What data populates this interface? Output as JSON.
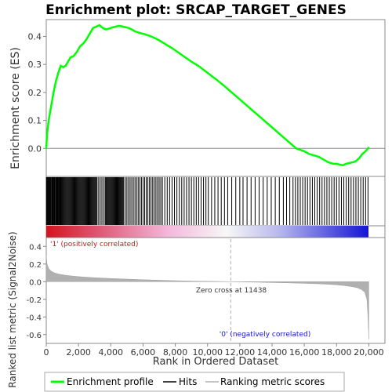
{
  "chart_data": [
    {
      "type": "line",
      "title": "Enrichment plot: SRCAP_TARGET_GENES",
      "ylabel": "Enrichment score (ES)",
      "ylim": [
        -0.1,
        0.46
      ],
      "yticks": [
        0.0,
        0.1,
        0.2,
        0.3,
        0.4
      ],
      "ytick_labels": [
        "0.0",
        "0.1",
        "0.2",
        "0.3",
        "0.4"
      ],
      "xlim": [
        0,
        21000
      ],
      "grid": false,
      "series": [
        {
          "name": "Enrichment profile",
          "color": "#00ff00",
          "x": [
            0,
            50,
            150,
            300,
            450,
            600,
            750,
            900,
            1050,
            1200,
            1350,
            1500,
            1700,
            1900,
            2100,
            2300,
            2500,
            2700,
            2900,
            3100,
            3300,
            3500,
            3700,
            3900,
            4100,
            4300,
            4500,
            4700,
            4900,
            5100,
            5300,
            5500,
            5800,
            6100,
            6400,
            6700,
            7000,
            7400,
            7800,
            8200,
            8600,
            9000,
            9500,
            10000,
            10500,
            11000,
            11500,
            12000,
            12500,
            13000,
            13500,
            14000,
            14500,
            15000,
            15500,
            16000,
            16300,
            16600,
            16900,
            17200,
            17500,
            17800,
            18000,
            18200,
            18400,
            18600,
            18800,
            19000,
            19200,
            19400,
            19600,
            19800,
            19950,
            20000
          ],
          "y": [
            0.0,
            0.05,
            0.1,
            0.15,
            0.2,
            0.24,
            0.27,
            0.295,
            0.29,
            0.295,
            0.31,
            0.325,
            0.33,
            0.345,
            0.365,
            0.375,
            0.39,
            0.41,
            0.43,
            0.435,
            0.44,
            0.43,
            0.425,
            0.428,
            0.432,
            0.435,
            0.438,
            0.436,
            0.433,
            0.43,
            0.425,
            0.418,
            0.412,
            0.408,
            0.402,
            0.395,
            0.386,
            0.372,
            0.358,
            0.342,
            0.326,
            0.31,
            0.292,
            0.27,
            0.248,
            0.225,
            0.2,
            0.175,
            0.15,
            0.125,
            0.1,
            0.075,
            0.05,
            0.025,
            0.0,
            -0.01,
            -0.02,
            -0.025,
            -0.03,
            -0.04,
            -0.05,
            -0.055,
            -0.055,
            -0.058,
            -0.06,
            -0.055,
            -0.052,
            -0.05,
            -0.045,
            -0.035,
            -0.02,
            -0.01,
            0.0,
            0.005
          ]
        }
      ]
    },
    {
      "type": "scatter",
      "xlim": [
        0,
        21000
      ],
      "series": [
        {
          "name": "Hits",
          "color": "#000000",
          "x": [
            10,
            40,
            70,
            110,
            150,
            190,
            230,
            270,
            300,
            350,
            390,
            430,
            470,
            510,
            550,
            600,
            640,
            680,
            720,
            760,
            800,
            850,
            900,
            950,
            1000,
            1050,
            1100,
            1150,
            1200,
            1250,
            1300,
            1350,
            1400,
            1450,
            1500,
            1550,
            1600,
            1650,
            1700,
            1750,
            1800,
            1850,
            1900,
            1950,
            2000,
            2050,
            2100,
            2150,
            2200,
            2250,
            2300,
            2350,
            2400,
            2450,
            2500,
            2550,
            2600,
            2650,
            2700,
            2750,
            2800,
            2850,
            2900,
            2950,
            3000,
            3050,
            3100,
            3150,
            3250,
            3350,
            3450,
            3550,
            3650,
            3700,
            3750,
            3800,
            3850,
            3900,
            3950,
            4000,
            4050,
            4100,
            4150,
            4200,
            4250,
            4300,
            4350,
            4400,
            4450,
            4500,
            4550,
            4600,
            4650,
            4700,
            4750,
            4800,
            4900,
            5000,
            5100,
            5200,
            5300,
            5400,
            5500,
            5600,
            5700,
            5800,
            5900,
            6000,
            6100,
            6200,
            6300,
            6400,
            6500,
            6600,
            6700,
            6800,
            6900,
            7000,
            7100,
            7200,
            7350,
            7500,
            7650,
            7800,
            7950,
            8100,
            8250,
            8400,
            8550,
            8700,
            8850,
            9000,
            9150,
            9300,
            9450,
            9600,
            9750,
            9900,
            10050,
            10250,
            10450,
            10650,
            10850,
            11050,
            11250,
            11500,
            11750,
            12000,
            12200,
            12450,
            12700,
            12950,
            13200,
            13450,
            13700,
            13950,
            14200,
            14450,
            14700,
            14900,
            15100,
            15300,
            15450,
            15600,
            15750,
            15900,
            16050,
            16200,
            16350,
            16500,
            16650,
            16800,
            16950,
            17100,
            17250,
            17400,
            17550,
            17700,
            17850,
            18000,
            18150,
            18300,
            18450,
            18600,
            18750,
            18900,
            19050,
            19200,
            19350,
            19500,
            19650,
            19800,
            19950
          ]
        }
      ]
    },
    {
      "type": "area",
      "ylabel": "Ranked list metric (Signal2Noise)",
      "xlabel": "Rank in Ordered Dataset",
      "ylim": [
        -0.7,
        0.5
      ],
      "xlim": [
        0,
        21000
      ],
      "yticks": [
        -0.6,
        -0.4,
        -0.2,
        0.0,
        0.2,
        0.4
      ],
      "ytick_labels": [
        "-0.6",
        "-0.4",
        "-0.2",
        "0.0",
        "0.2",
        "0.4"
      ],
      "xticks": [
        0,
        2000,
        4000,
        6000,
        8000,
        10000,
        12000,
        14000,
        16000,
        18000,
        20000
      ],
      "xtick_labels": [
        "0",
        "2,000",
        "4,000",
        "6,000",
        "8,000",
        "10,000",
        "12,000",
        "14,000",
        "16,000",
        "18,000",
        "20,000"
      ],
      "series": [
        {
          "name": "Ranking metric scores",
          "color": "#b0b0b0",
          "x": [
            0,
            50,
            150,
            300,
            500,
            800,
            1200,
            1700,
            2300,
            3000,
            4000,
            5000,
            6000,
            7000,
            8000,
            9000,
            10000,
            11000,
            11438,
            12000,
            13000,
            14000,
            15000,
            16000,
            17000,
            17500,
            18000,
            18500,
            19000,
            19300,
            19550,
            19750,
            19880,
            19950,
            20000
          ],
          "y": [
            0.3,
            0.2,
            0.15,
            0.12,
            0.1,
            0.085,
            0.072,
            0.062,
            0.053,
            0.045,
            0.036,
            0.029,
            0.022,
            0.016,
            0.011,
            0.007,
            0.004,
            0.001,
            0.0,
            -0.002,
            -0.006,
            -0.01,
            -0.014,
            -0.019,
            -0.025,
            -0.03,
            -0.036,
            -0.045,
            -0.058,
            -0.07,
            -0.09,
            -0.12,
            -0.2,
            -0.4,
            -0.65
          ]
        }
      ],
      "annotations": [
        "Zero cross at 11438",
        "'1' (positively correlated)",
        "'0' (negatively correlated)"
      ]
    }
  ],
  "legend": {
    "position": "bottom",
    "items": [
      {
        "label": "Enrichment profile",
        "color": "#00ff00"
      },
      {
        "label": "Hits",
        "color": "#000000"
      },
      {
        "label": "Ranking metric scores",
        "color": "#b0b0b0"
      }
    ]
  },
  "colors": {
    "positive": "#d4141e",
    "negative": "#1414d4",
    "profile": "#00ff00"
  }
}
